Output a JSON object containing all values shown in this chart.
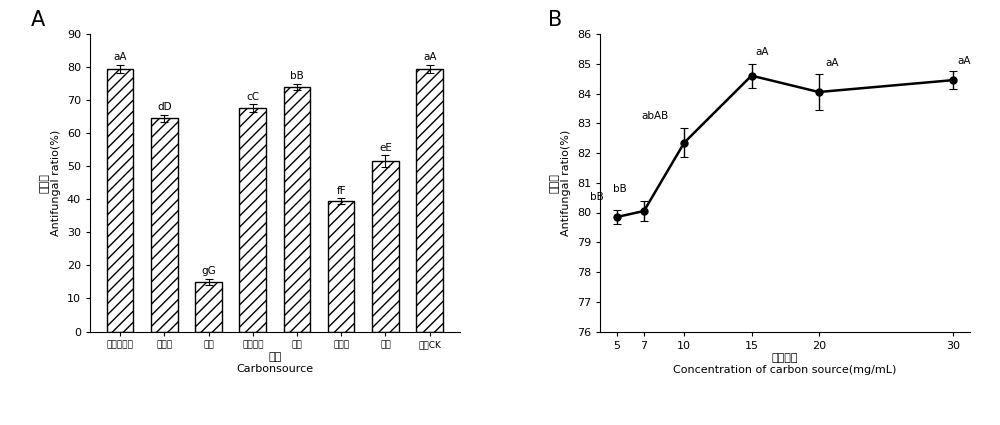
{
  "A": {
    "categories": [
      "可溶性淀粉",
      "麦芽糖",
      "木糖",
      "玉米淀粉",
      "蔗糖",
      "羊齿糖",
      "乳糖",
      "对照CK"
    ],
    "values": [
      79.5,
      64.5,
      15.0,
      67.5,
      74.0,
      39.5,
      51.5,
      79.5
    ],
    "errors": [
      1.2,
      1.0,
      1.0,
      1.2,
      1.0,
      0.8,
      1.8,
      1.2
    ],
    "labels": [
      "aA",
      "dD",
      "gG",
      "cC",
      "bB",
      "fF",
      "eE",
      "aA"
    ],
    "ylim": [
      0,
      90
    ],
    "yticks": [
      0,
      10,
      20,
      30,
      40,
      50,
      60,
      70,
      80,
      90
    ],
    "ylabel_cn": "抑菌率",
    "ylabel_en": "Antifungal ratio(%)",
    "xlabel_cn": "碗源",
    "xlabel_en": "Carbonsource",
    "panel_label": "A",
    "hatch": "///",
    "bar_color": "white",
    "bar_edgecolor": "black"
  },
  "B": {
    "x": [
      5,
      7,
      10,
      15,
      20,
      30
    ],
    "values": [
      79.85,
      80.05,
      82.35,
      84.6,
      84.05,
      84.45
    ],
    "errors": [
      0.25,
      0.35,
      0.5,
      0.4,
      0.6,
      0.3
    ],
    "labels": [
      "bB",
      "bB",
      "abAB",
      "aA",
      "aA",
      "aA"
    ],
    "ylim": [
      76,
      86
    ],
    "yticks": [
      76,
      77,
      78,
      79,
      80,
      81,
      82,
      83,
      84,
      85,
      86
    ],
    "ylabel_cn": "抑菌率",
    "ylabel_en": "Antifungal ratio(%)",
    "xlabel_cn": "碗源浓度",
    "xlabel_en": "Concentration of carbon source(mg/mL)",
    "panel_label": "B",
    "line_color": "black",
    "marker": "o",
    "marker_size": 5
  }
}
